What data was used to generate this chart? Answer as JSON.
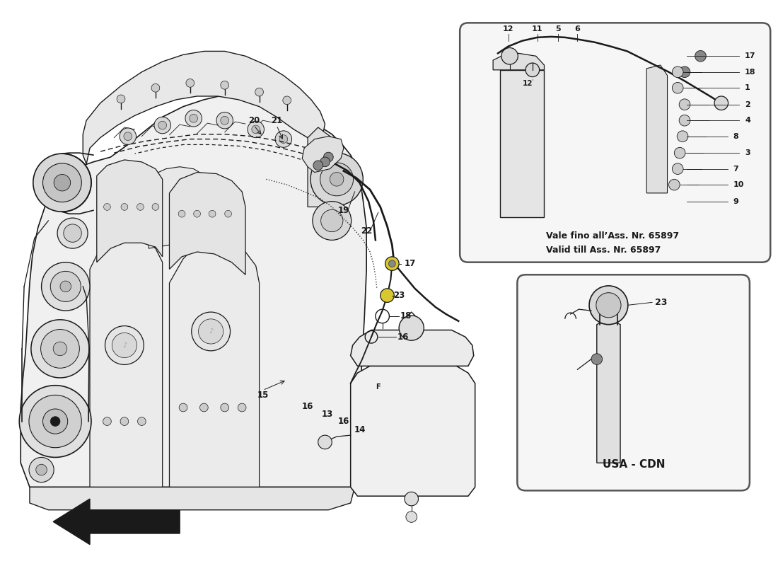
{
  "bg_color": "#ffffff",
  "lc": "#1a1a1a",
  "watermark_color": "#c8b418",
  "watermark_alpha": 0.28,
  "note_lines": [
    "Vale fino all’Ass. Nr. 65897",
    "Valid till Ass. Nr. 65897"
  ],
  "usa_cdn": "USA - CDN",
  "inset_border": "#555555",
  "inset_fill": "#f6f6f6",
  "yellow_fit": "#d8c830"
}
